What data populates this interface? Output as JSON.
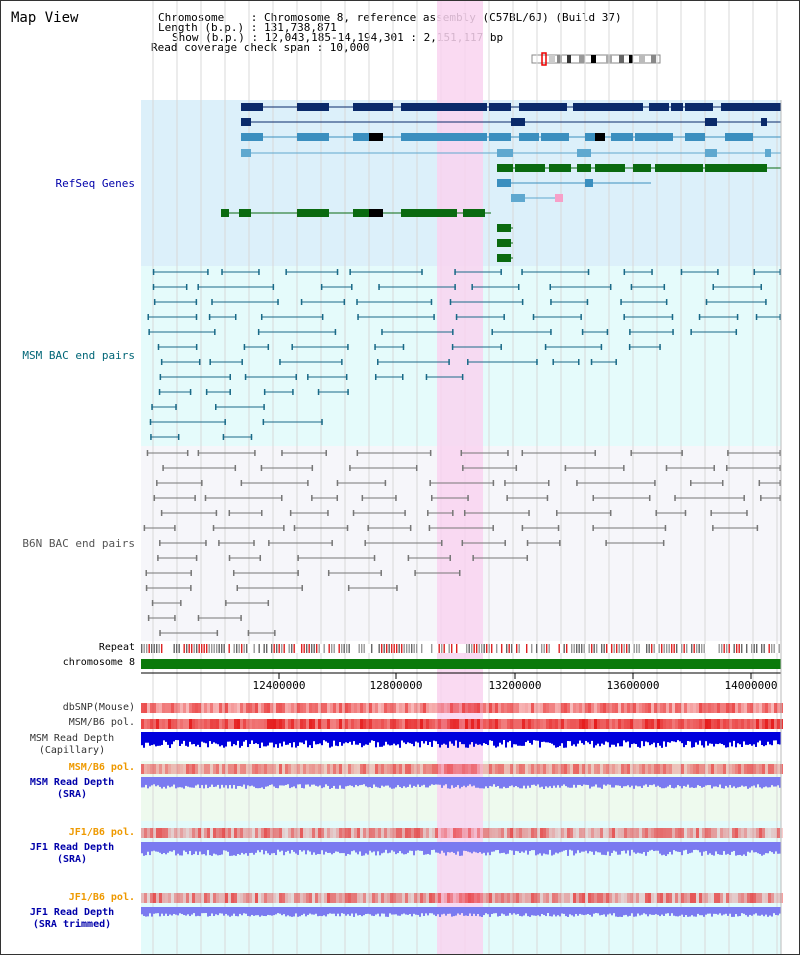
{
  "title": "Map View",
  "info": {
    "line1": "Chromosome    : Chromosome 8, reference assembly (C57BL/6J) (Build 37)",
    "line2": "Length (b.p.) : 131,738,871",
    "line3": "Show (b.p.) : 12,043,185-14,194,301 : 2,151,117 bp",
    "line4": "Read coverage check span : 10,000"
  },
  "tracks": {
    "refseq": "RefSeq Genes",
    "msm_bac": "MSM BAC end pairs",
    "b6n_bac": "B6N BAC end pairs",
    "repeat": "Repeat",
    "chromosome": "chromosome 8",
    "dbsnp": "dbSNP(Mouse)",
    "msm_b6_pol": "MSM/B6 pol.",
    "msm_depth_cap": "MSM Read Depth",
    "msm_depth_cap_sub": "(Capillary)",
    "msm_b6_pol2": "MSM/B6 pol.",
    "msm_depth_sra": "MSM Read Depth",
    "msm_depth_sra_sub": "(SRA)",
    "jf1_pol": "JF1/B6 pol.",
    "jf1_depth": "JF1 Read Depth",
    "jf1_depth_sub": "(SRA)",
    "jf1_pol2": "JF1/B6 pol.",
    "jf1_depth_trim": "JF1 Read Depth",
    "jf1_depth_trim_sub": "(SRA trimmed)"
  },
  "axis": {
    "ticks": [
      "12400000",
      "12800000",
      "13200000",
      "13600000",
      "14000000"
    ]
  },
  "colors": {
    "refseq_label": "#0000aa",
    "msm_label": "#006677",
    "b6n_label": "#555555",
    "orange_label": "#ee9900",
    "blue_label": "#0000aa",
    "highlight": "#f9d3f0"
  }
}
